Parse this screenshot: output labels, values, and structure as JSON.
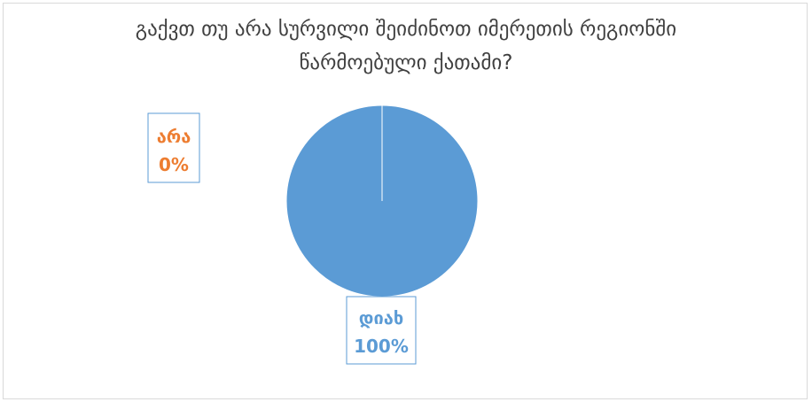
{
  "chart_data": {
    "type": "pie",
    "title_lines": [
      "გაქვთ თუ არა სურვილი შეიძინოთ იმერეთის რეგიონში",
      "წარმოებული ქათამი?"
    ],
    "categories": [
      "დიახ",
      "არა"
    ],
    "values": [
      100,
      0
    ],
    "data_labels": [
      {
        "name": "დიახ",
        "percent": "100%"
      },
      {
        "name": "არა",
        "percent": "0%"
      }
    ],
    "legend": "none",
    "colors": {
      "slice_1": "#5b9bd5",
      "slice_2": "#ed7d31",
      "label_1": "#5b9bd5",
      "label_2": "#ed7d31",
      "title": "#404040",
      "border": "#d9d9d9"
    }
  }
}
